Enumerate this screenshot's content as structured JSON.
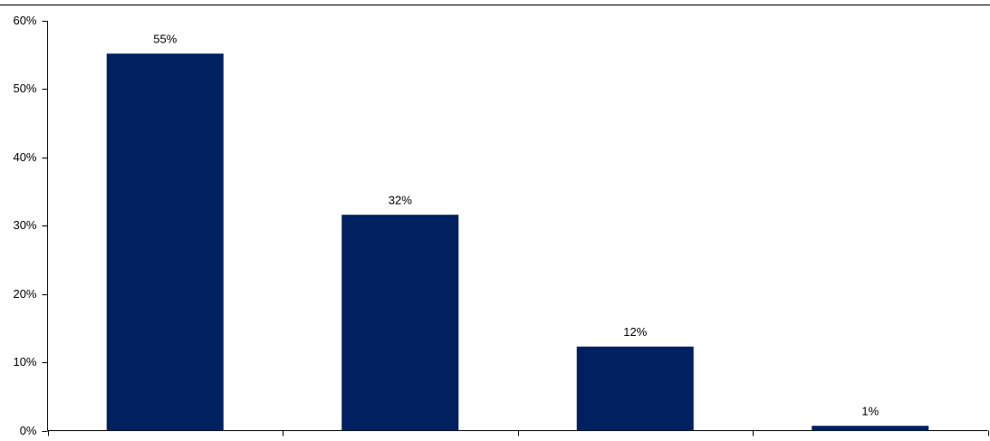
{
  "chart_data": {
    "type": "bar",
    "categories": [
      null,
      null,
      null,
      null
    ],
    "values": [
      55.2,
      31.6,
      12.3,
      0.7
    ],
    "value_labels": [
      "55%",
      "32%",
      "12%",
      "1%"
    ],
    "color": "#002060",
    "ylim": [
      0,
      60
    ],
    "yticks": [
      {
        "value": 0,
        "label": "0%"
      },
      {
        "value": 10,
        "label": "10%"
      },
      {
        "value": 20,
        "label": "20%"
      },
      {
        "value": 30,
        "label": "30%"
      },
      {
        "value": 40,
        "label": "40%"
      },
      {
        "value": 50,
        "label": "50%"
      },
      {
        "value": 60,
        "label": "60%"
      }
    ]
  }
}
